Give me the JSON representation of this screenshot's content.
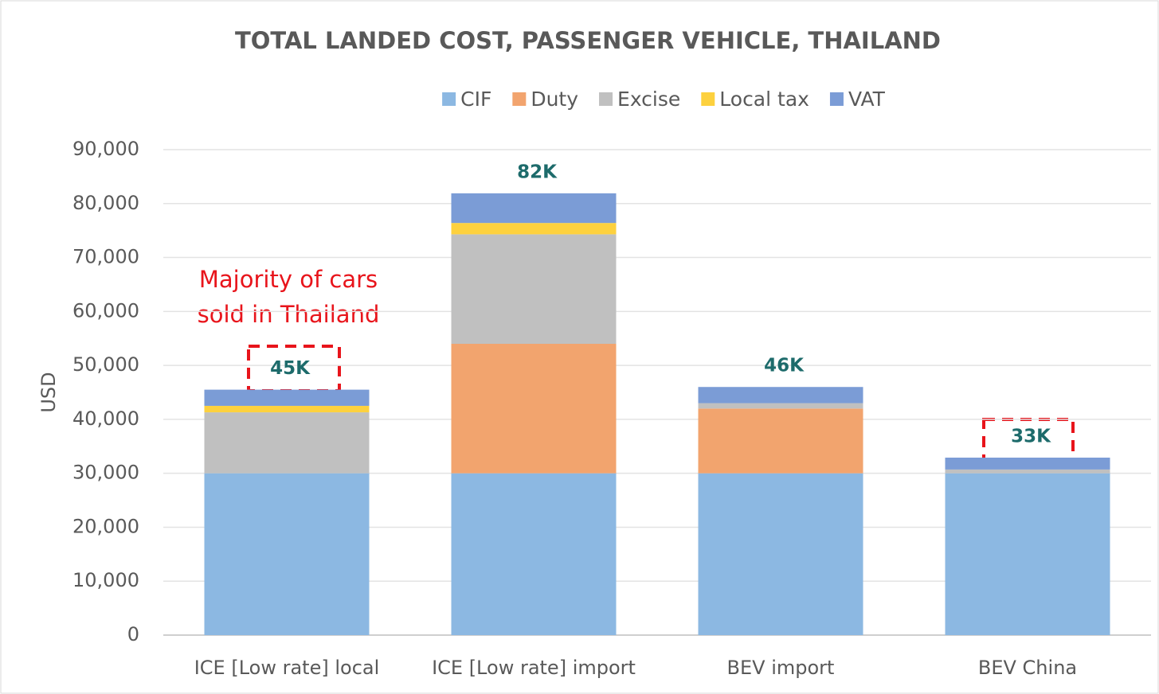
{
  "chart_data": {
    "type": "stacked_bar",
    "title": "TOTAL LANDED COST, PASSENGER VEHICLE, THAILAND",
    "y_label": "USD",
    "categories": [
      "ICE [Low rate] local",
      "ICE [Low rate] import",
      "BEV import",
      "BEV China"
    ],
    "series": [
      {
        "name": "CIF",
        "color": "#8cb8e2",
        "values": [
          30000,
          30000,
          30000,
          30000
        ]
      },
      {
        "name": "Duty",
        "color": "#f2a46e",
        "values": [
          0,
          24000,
          12000,
          0
        ]
      },
      {
        "name": "Excise",
        "color": "#c0c0c0",
        "values": [
          11300,
          20300,
          1000,
          700
        ]
      },
      {
        "name": "Local tax",
        "color": "#fdd13e",
        "values": [
          1200,
          2100,
          0,
          0
        ]
      },
      {
        "name": "VAT",
        "color": "#7b9cd6",
        "values": [
          3000,
          5500,
          3000,
          2200
        ]
      }
    ],
    "total_labels": [
      "45K",
      "82K",
      "46K",
      "33K"
    ],
    "annotation": [
      "Majority of cars",
      "sold in Thailand"
    ],
    "ylim": [
      0,
      90000
    ],
    "yticks": [
      0,
      {
        "value": 10000,
        "label": "10,000"
      },
      {
        "value": 20000,
        "label": "20,000"
      },
      {
        "value": 30000,
        "label": "30,000"
      },
      {
        "value": 40000,
        "label": "40,000"
      },
      {
        "value": 50000,
        "label": "50,000"
      },
      {
        "value": 60000,
        "label": "60,000"
      },
      {
        "value": 70000,
        "label": "70,000"
      },
      {
        "value": 80000,
        "label": "80,000"
      },
      {
        "value": 90000,
        "label": "90,000"
      }
    ],
    "grid": true,
    "legend": "top"
  }
}
